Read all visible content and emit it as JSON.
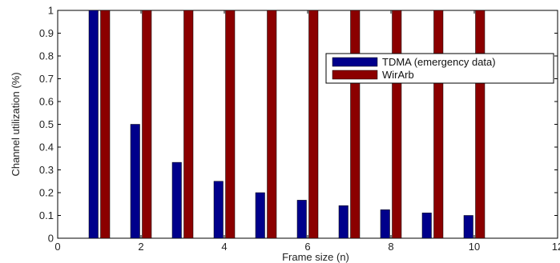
{
  "chart_data": {
    "type": "bar",
    "title": "",
    "xlabel": "Frame size (n)",
    "ylabel": "Channel utilization (%)",
    "categories": [
      1,
      2,
      3,
      4,
      5,
      6,
      7,
      8,
      9,
      10
    ],
    "series": [
      {
        "name": "TDMA (emergency data)",
        "color": "#00008b",
        "values": [
          1,
          0.5,
          0.333,
          0.25,
          0.2,
          0.167,
          0.143,
          0.125,
          0.111,
          0.1
        ]
      },
      {
        "name": "WirArb",
        "color": "#8b0000",
        "values": [
          1,
          1,
          1,
          1,
          1,
          1,
          1,
          1,
          1,
          1
        ]
      }
    ],
    "xlim": [
      0,
      12
    ],
    "ylim": [
      0,
      1
    ],
    "xticks": [
      "0",
      "2",
      "4",
      "6",
      "8",
      "10",
      "12"
    ],
    "yticks": [
      "0",
      "0.1",
      "0.2",
      "0.3",
      "0.4",
      "0.5",
      "0.6",
      "0.7",
      "0.8",
      "0.9",
      "1"
    ],
    "grid": false,
    "legend_position": "upper-right"
  }
}
